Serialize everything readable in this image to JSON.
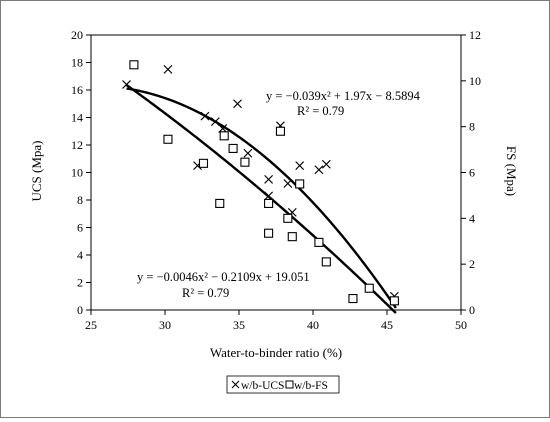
{
  "chart_data": {
    "type": "scatter",
    "xlabel": "Water-to-binder ratio (%)",
    "ylabel_left": "UCS (Mpa)",
    "ylabel_right": "FS (Mpa)",
    "xlim": [
      25,
      50
    ],
    "ylim_left": [
      0,
      20
    ],
    "ylim_right": [
      0,
      12
    ],
    "x_ticks": [
      "25",
      "30",
      "35",
      "40",
      "45",
      "50"
    ],
    "y_left_ticks": [
      "0",
      "2",
      "4",
      "6",
      "8",
      "10",
      "12",
      "14",
      "16",
      "18",
      "20"
    ],
    "y_right_ticks": [
      "0",
      "2",
      "4",
      "6",
      "8",
      "10",
      "12"
    ],
    "grid": false,
    "legend_position": "bottom",
    "series": [
      {
        "name": "w/b-UCS",
        "marker": "x",
        "axis": "left",
        "points": [
          [
            27.4,
            16.4
          ],
          [
            30.2,
            17.5
          ],
          [
            32.2,
            10.5
          ],
          [
            32.7,
            14.1
          ],
          [
            33.4,
            13.7
          ],
          [
            33.9,
            13.2
          ],
          [
            34.9,
            15.0
          ],
          [
            35.6,
            11.4
          ],
          [
            37.0,
            9.5
          ],
          [
            37.0,
            8.3
          ],
          [
            37.8,
            13.4
          ],
          [
            38.3,
            9.2
          ],
          [
            38.6,
            7.1
          ],
          [
            39.1,
            10.5
          ],
          [
            40.4,
            10.2
          ],
          [
            40.9,
            10.6
          ],
          [
            45.5,
            1.0
          ]
        ],
        "fit": {
          "a": -0.039,
          "b": 1.97,
          "c": -8.5894,
          "x_range": [
            27.4,
            45.6
          ]
        }
      },
      {
        "name": "w/b-FS",
        "marker": "square",
        "axis": "right",
        "points": [
          [
            27.9,
            10.7
          ],
          [
            30.2,
            7.45
          ],
          [
            32.6,
            6.4
          ],
          [
            33.7,
            4.65
          ],
          [
            34.0,
            7.6
          ],
          [
            34.6,
            7.05
          ],
          [
            35.4,
            6.45
          ],
          [
            37.0,
            4.65
          ],
          [
            37.0,
            3.35
          ],
          [
            37.8,
            7.8
          ],
          [
            38.3,
            4.0
          ],
          [
            38.6,
            3.2
          ],
          [
            39.1,
            5.5
          ],
          [
            40.4,
            2.95
          ],
          [
            40.9,
            2.1
          ],
          [
            42.7,
            0.5
          ],
          [
            43.8,
            0.95
          ],
          [
            45.5,
            0.4
          ]
        ],
        "fit": {
          "a": -0.0046,
          "b": -0.2109,
          "c": 19.051,
          "x_range": [
            27.4,
            45.6
          ]
        }
      }
    ],
    "annotations": [
      {
        "id": "ucs-eq",
        "lines": [
          "y = −0.039x² + 1.97x − 8.5894",
          "R² = 0.79"
        ]
      },
      {
        "id": "fs-eq",
        "lines": [
          "y = −0.0046x² − 0.2109x + 19.051",
          "R² = 0.79"
        ]
      }
    ]
  }
}
